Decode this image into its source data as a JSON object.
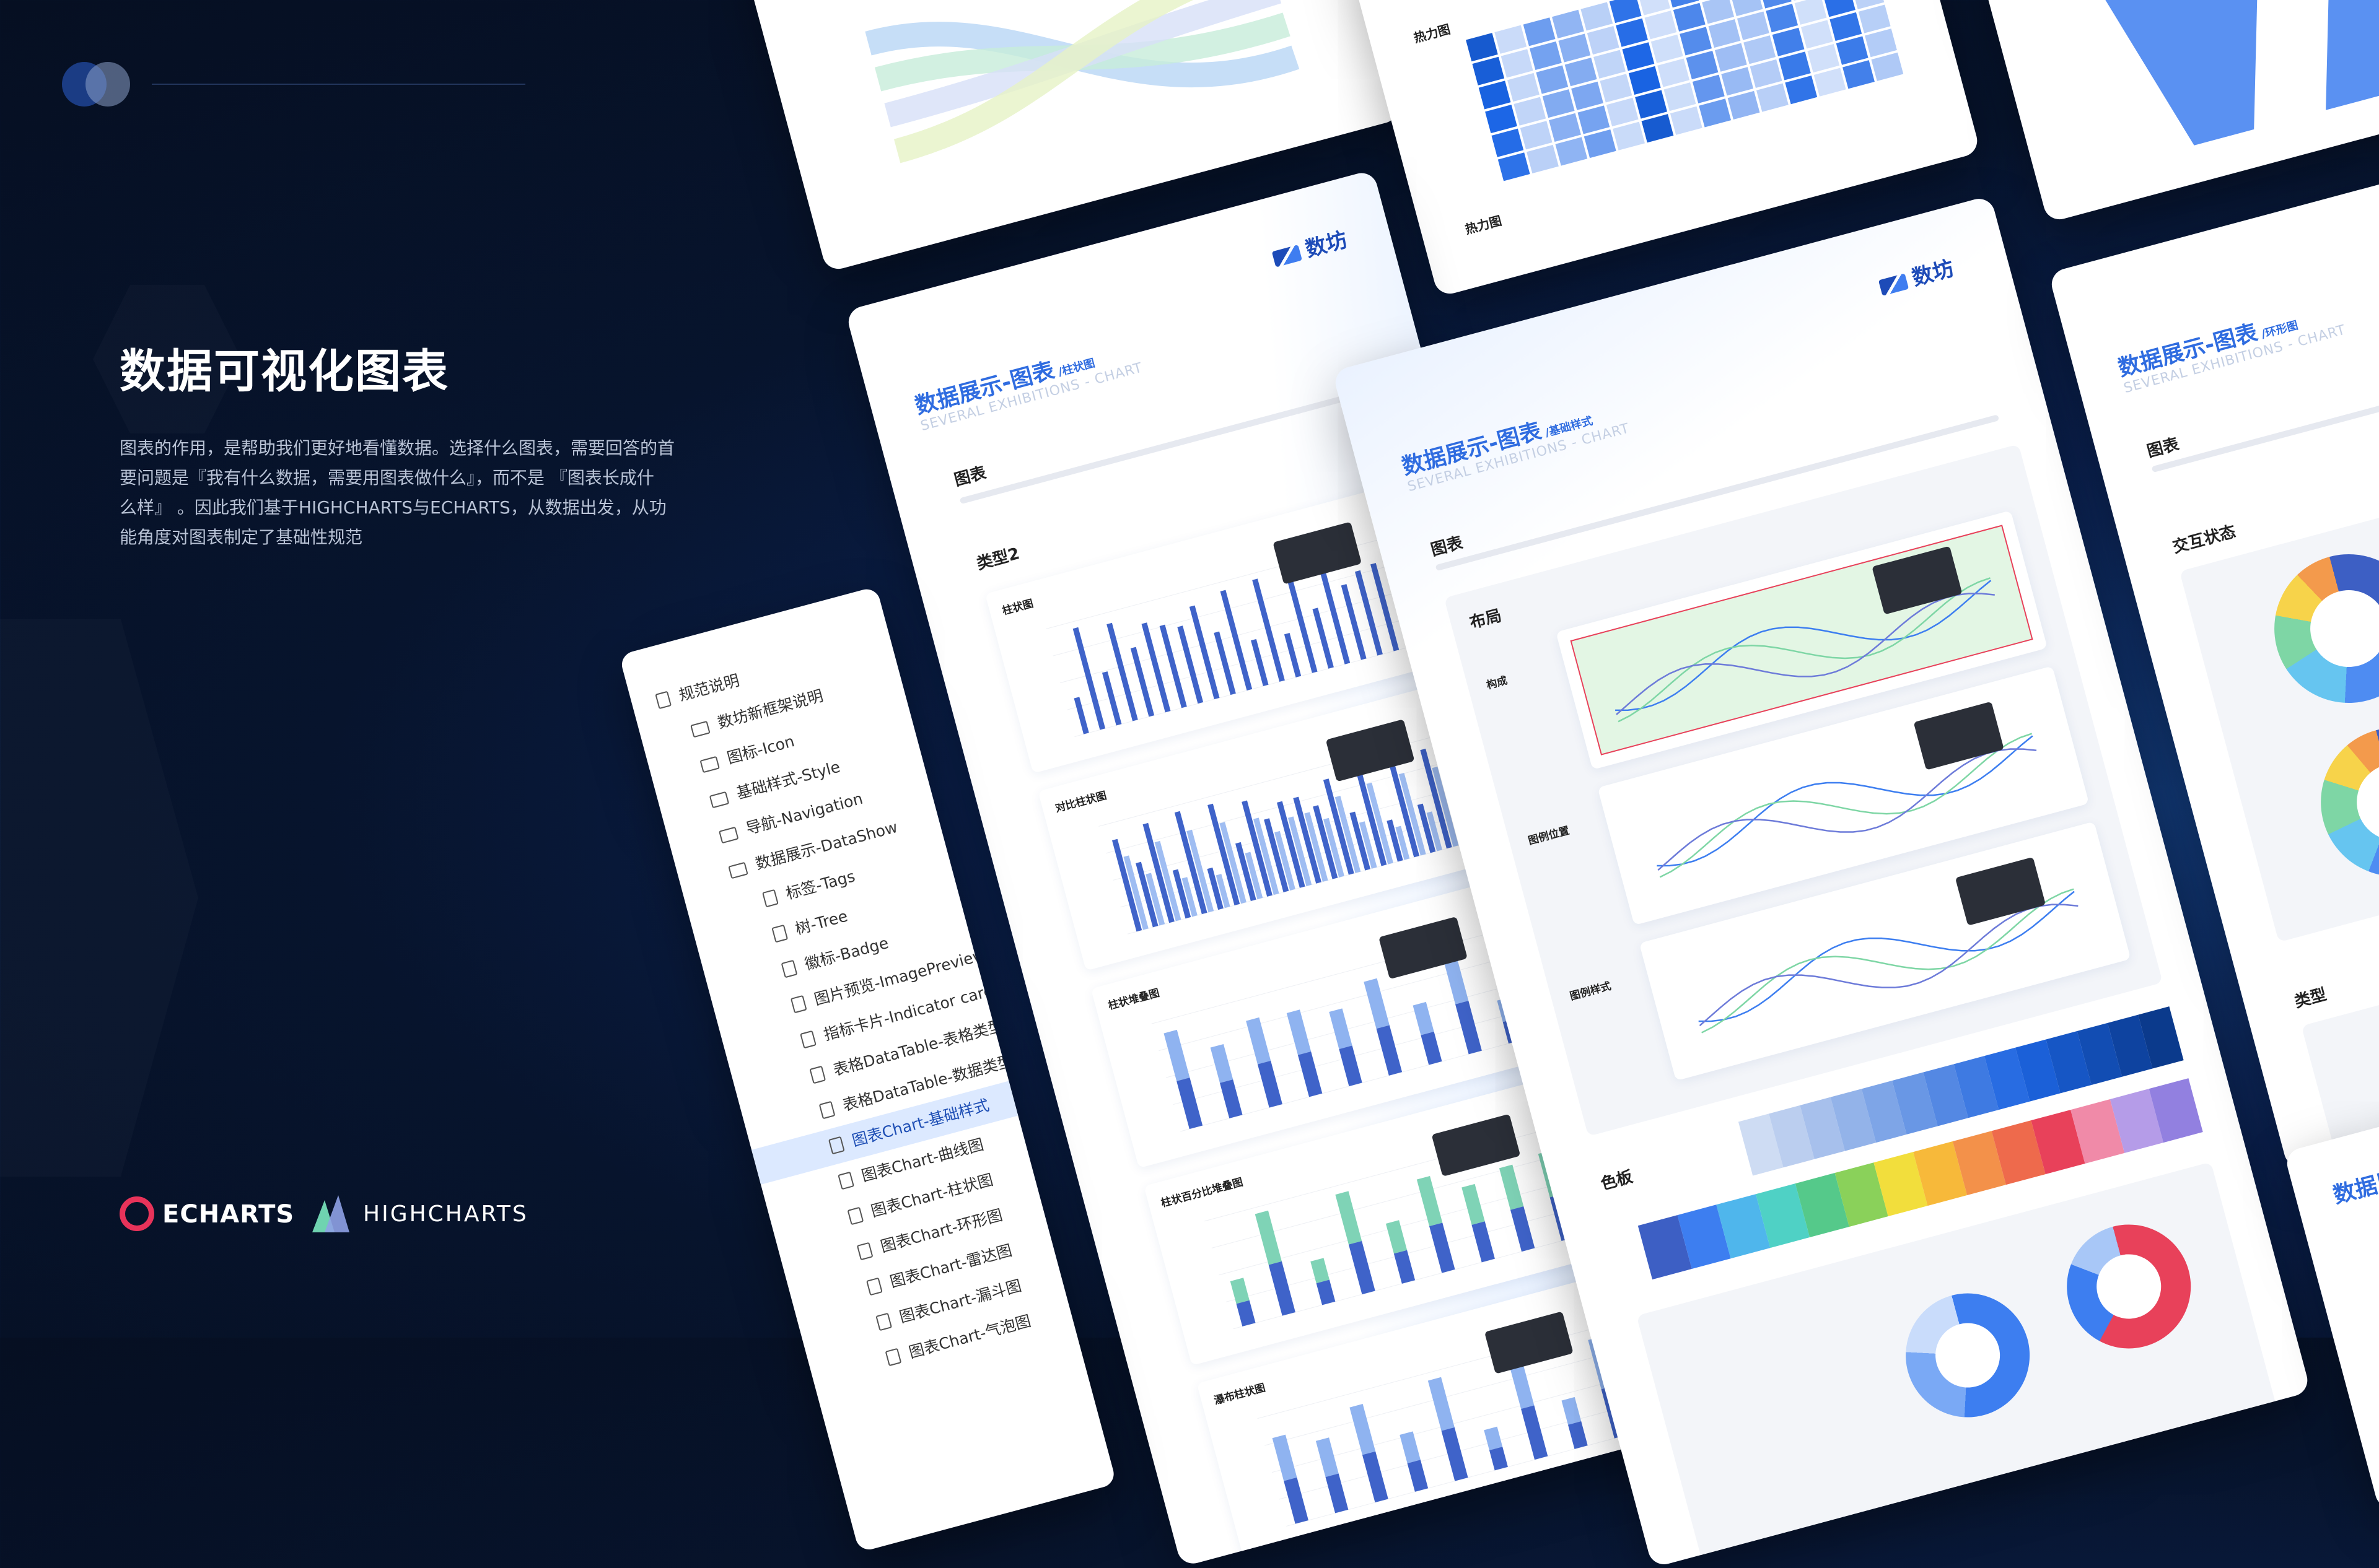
{
  "header": {
    "title": "数据可视化图表",
    "description": [
      "图表的作用，是帮助我们更好地看懂数据。选择什么图表，需要回答的首",
      "要问题是『我有什么数据，需要用图表做什么』，而不是 『图表长成什",
      "么样』 。因此我们基于HIGHCHARTS与ECHARTS，从数据出发，从功",
      "能角度对图表制定了基础性规范"
    ]
  },
  "logos": [
    "ECHARTS",
    "HIGHCHARTS"
  ],
  "sidebar": {
    "items": [
      "规范说明",
      "数坊新框架说明",
      "图标-Icon",
      "基础样式-Style",
      "导航-Navigation",
      "数据展示-DataShow",
      "标签-Tags",
      "树-Tree",
      "徽标-Badge",
      "图片预览-ImagePreview",
      "指标卡片-Indicator card",
      "表格DataTable-表格类型",
      "表格DataTable-数据类型",
      "图表Chart-基础样式",
      "图表Chart-曲线图",
      "图表Chart-柱状图",
      "图表Chart-环形图",
      "图表Chart-雷达图",
      "图表Chart-漏斗图",
      "图表Chart-气泡图"
    ],
    "active": 13
  },
  "left_card": {
    "brand": "数坊",
    "title": "数据展示-图表",
    "subtitle": "/柱状图",
    "english": "SEVERAL EXHIBITIONS - CHART",
    "section": "图表",
    "group": "类型2",
    "charts": [
      "柱状图",
      "对比柱状图",
      "柱状堆叠图",
      "柱状百分比堆叠图",
      "瀑布柱状图"
    ]
  },
  "main_card": {
    "brand": "数坊",
    "title": "数据展示-图表",
    "subtitle": "/基础样式",
    "english": "SEVERAL EXHIBITIONS - CHART",
    "section": "图表",
    "layout": "布局",
    "charts": [
      "构成",
      "图例位置",
      "图例样式"
    ],
    "palette": "色板"
  },
  "right_card": {
    "title": "数据展示-图表",
    "subtitle": "/环形图",
    "english": "SEVERAL EXHIBITIONS - CHART",
    "section": "图表",
    "state": "交互状态",
    "type": "类型"
  },
  "top_card": {
    "heatmap": "热力图"
  }
}
